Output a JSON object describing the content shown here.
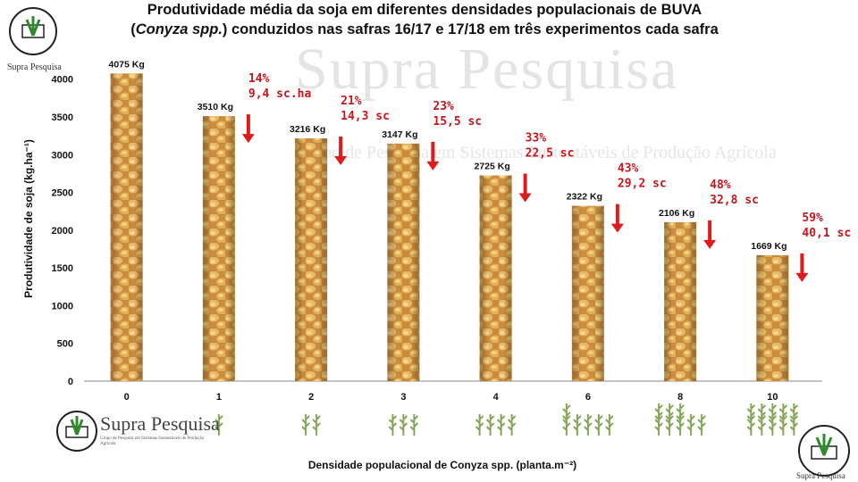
{
  "title_line1": "Produtividade  média da soja em diferentes densidades populacionais  de BUVA",
  "title_line2_italic": "Conyza spp.",
  "title_line2_rest": ") conduzidos  nas safras 16/17 e 17/18 em três experimentos cada safra",
  "title_line2_open": "(",
  "logo": {
    "name": "Supra Pesquisa",
    "small_text": "Supra Pesquisa",
    "tagline": "Grupo de Pesquisa em Sistemas Sustentáveis de Produção Agrícola"
  },
  "watermark": {
    "main": "Supra Pesquisa",
    "sub": "Grupo de Pesquisa em Sistemas Sustentáveis de Produção Agrícola"
  },
  "chart_data": {
    "type": "bar",
    "title": "Produtividade  média da soja em diferentes densidades populacionais  de BUVA (Conyza spp.) conduzidos  nas safras 16/17 e 17/18 em três experimentos cada safra",
    "xlabel": "Densidade populacional  de Conyza spp. (planta.m⁻²)",
    "ylabel": "Produtividade de soja  (kg.ha⁻¹)",
    "categories": [
      "0",
      "1",
      "2",
      "3",
      "4",
      "6",
      "8",
      "10"
    ],
    "values": [
      4075,
      3510,
      3216,
      3147,
      2725,
      2322,
      2106,
      1669
    ],
    "value_labels": [
      "4075 Kg",
      "3510 Kg",
      "3216 Kg",
      "3147 Kg",
      "2725 Kg",
      "2322 Kg",
      "2106 Kg",
      "1669 Kg"
    ],
    "loss_percent": [
      null,
      "14%",
      "21%",
      "23%",
      "33%",
      "43%",
      "48%",
      "59%"
    ],
    "loss_sc": [
      null,
      "9,4 sc.ha",
      "14,3 sc",
      "15,5 sc",
      "22,5 sc",
      "29,2 sc",
      "32,8 sc",
      "40,1 sc"
    ],
    "yticks": [
      0,
      500,
      1000,
      1500,
      2000,
      2500,
      3000,
      3500,
      4000
    ],
    "ylim": [
      0,
      4150
    ],
    "grid": false,
    "legend": "none",
    "colors": {
      "bar_base": "#d7a14e",
      "bar_light": "#f2cf85",
      "bar_dark": "#9a6420",
      "annotation": "#c8161d",
      "arrow": "#e01b1b",
      "plant": "#86a65a"
    }
  }
}
